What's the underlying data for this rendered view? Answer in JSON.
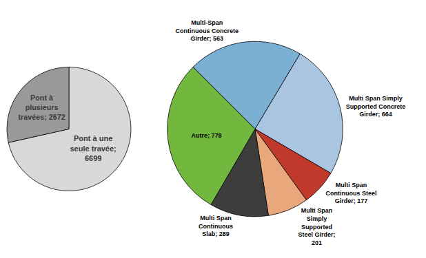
{
  "chart_data": [
    {
      "type": "pie",
      "categories": [
        "Pont à une\nseule travée;\n6699",
        "Pont à\nplusieurs\ntravées; 2672"
      ],
      "values": [
        6699,
        2672
      ],
      "colors": [
        "#d8d8d8",
        "#999999"
      ],
      "data_labels": true
    },
    {
      "type": "pie",
      "categories": [
        "Multi-Span\nContinuous Concrete\nGirder; 563",
        "Multi Span Simply\nSupported Concrete\nGirder; 664",
        "Multi Span\nContinuous Steel\nGirder; 177",
        "Multi Span\nSimply\nSupported\nSteel Girder;\n201",
        "Multi Span\nContinuous\nSlab; 289",
        "Autre; 778"
      ],
      "values": [
        563,
        664,
        177,
        201,
        289,
        778
      ],
      "colors": [
        "#7bafd4",
        "#aac5e0",
        "#c0392b",
        "#e8a87c",
        "#3d3d3d",
        "#72b83e"
      ],
      "data_labels": true
    }
  ]
}
